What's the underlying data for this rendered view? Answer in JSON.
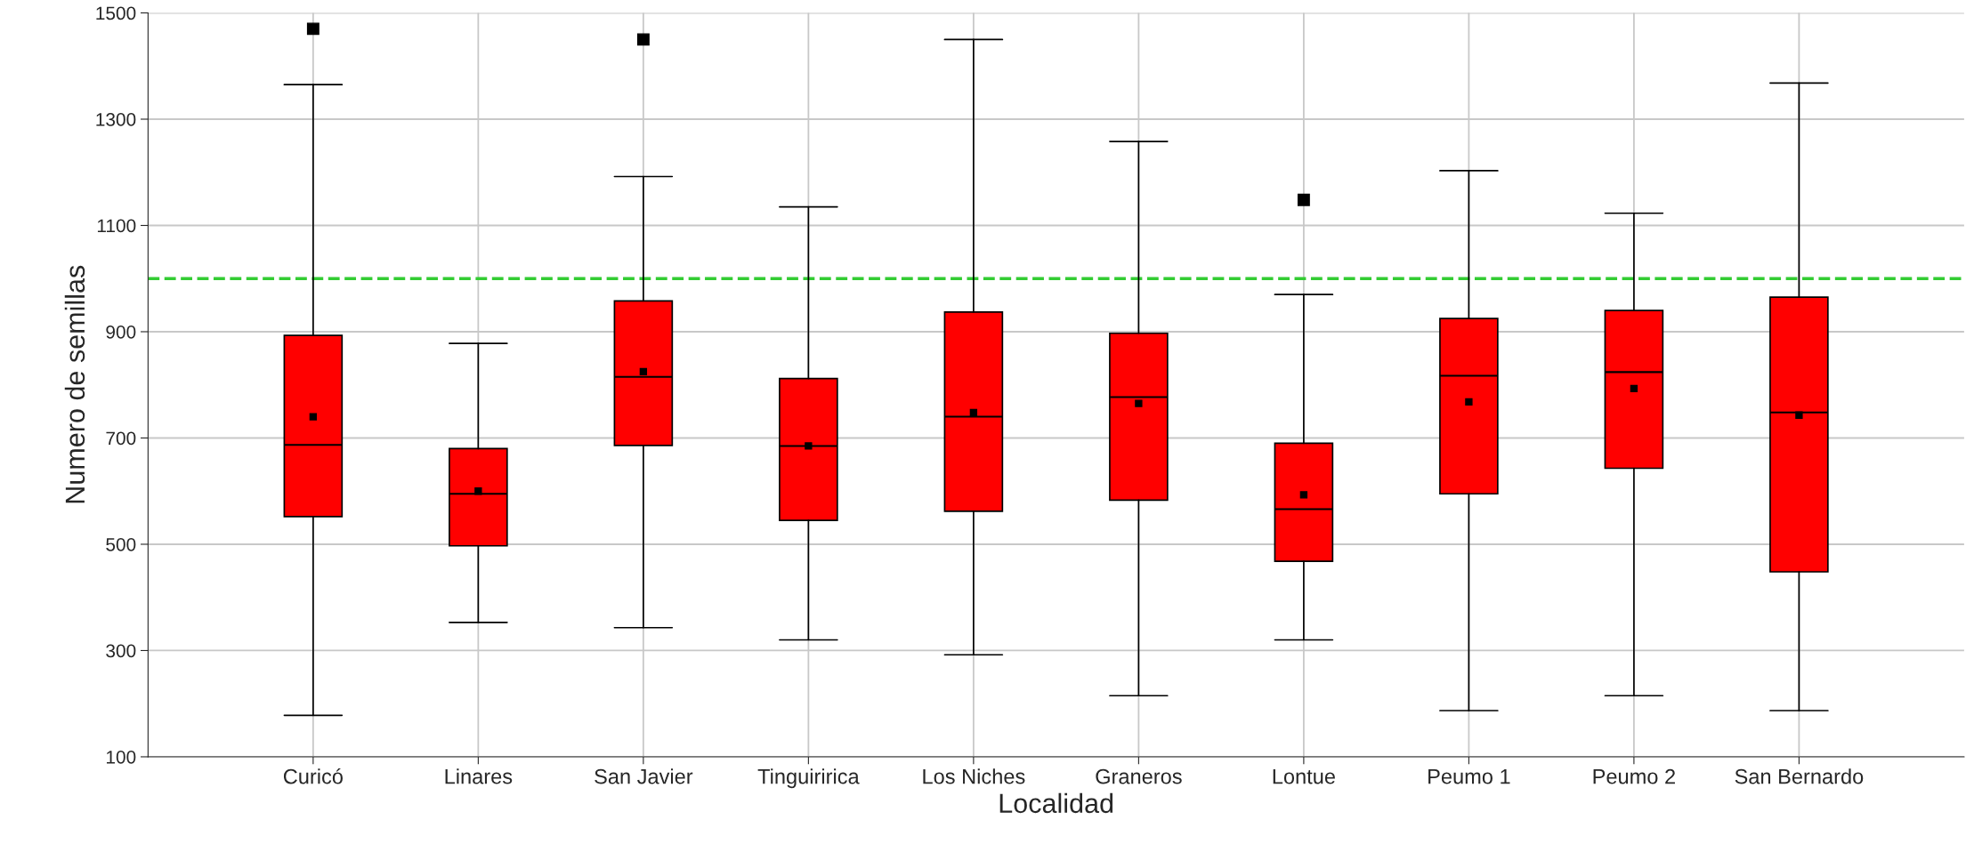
{
  "chart_data": {
    "type": "box",
    "xlabel": "Localidad",
    "ylabel": "Numero de semillas",
    "categories": [
      "Curicó",
      "Linares",
      "San Javier",
      "Tinguiririca",
      "Los Niches",
      "Graneros",
      "Lontue",
      "Peumo 1",
      "Peumo 2",
      "San Bernardo"
    ],
    "color": "#ff0000",
    "boxes": [
      {
        "low": 178,
        "q1": 552,
        "median": 687,
        "q3": 893,
        "high": 1365,
        "mean": 740,
        "outliers": [
          1470
        ]
      },
      {
        "low": 353,
        "q1": 497,
        "median": 595,
        "q3": 680,
        "high": 878,
        "mean": 600
      },
      {
        "low": 343,
        "q1": 686,
        "median": 815,
        "q3": 958,
        "high": 1192,
        "mean": 825,
        "outliers": [
          1450
        ]
      },
      {
        "low": 320,
        "q1": 545,
        "median": 685,
        "q3": 812,
        "high": 1135,
        "mean": 685
      },
      {
        "low": 292,
        "q1": 562,
        "median": 740,
        "q3": 937,
        "high": 1450,
        "mean": 748
      },
      {
        "low": 215,
        "q1": 583,
        "median": 777,
        "q3": 897,
        "high": 1258,
        "mean": 765
      },
      {
        "low": 320,
        "q1": 468,
        "median": 566,
        "q3": 690,
        "high": 970,
        "mean": 593,
        "outliers": [
          1148
        ]
      },
      {
        "low": 187,
        "q1": 595,
        "median": 817,
        "q3": 925,
        "high": 1203,
        "mean": 768
      },
      {
        "low": 215,
        "q1": 643,
        "median": 824,
        "q3": 940,
        "high": 1123,
        "mean": 793
      },
      {
        "low": 187,
        "q1": 448,
        "median": 748,
        "q3": 965,
        "high": 1368,
        "mean": 743
      }
    ],
    "ylim": [
      100,
      1500
    ],
    "yticks": [
      100,
      300,
      500,
      700,
      900,
      1100,
      1300,
      1500
    ],
    "ref_lines": [
      {
        "axis": "y",
        "value": 1000,
        "color": "#33cc33",
        "line_style": "dashed"
      }
    ],
    "grid": true
  }
}
